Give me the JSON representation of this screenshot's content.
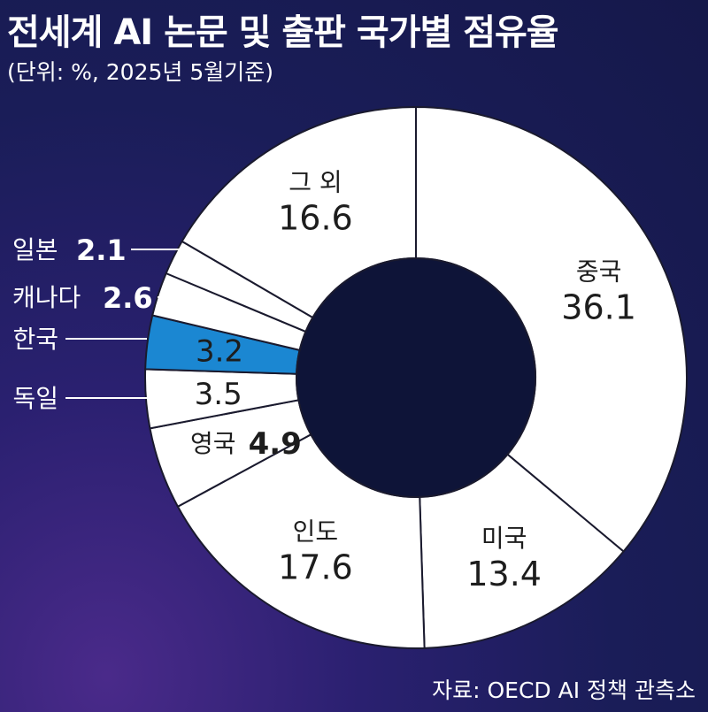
{
  "title": "전세계 AI 논문 및 출판 국가별 점유율",
  "subtitle": "(단위: %, 2025년 5월기준)",
  "source": "자료: OECD AI 정책 관측소",
  "colors": {
    "slice": "#ffffff",
    "highlight": "#1b87d2",
    "center": "#0e1438",
    "stroke": "#1a1a2e"
  },
  "chart_data": {
    "type": "pie",
    "title": "전세계 AI 논문 및 출판 국가별 점유율",
    "unit": "%",
    "donut": true,
    "highlight": "한국",
    "slices": [
      {
        "label": "중국",
        "value": 36.1
      },
      {
        "label": "미국",
        "value": 13.4
      },
      {
        "label": "인도",
        "value": 17.6
      },
      {
        "label": "영국",
        "value": 4.9
      },
      {
        "label": "독일",
        "value": 3.5
      },
      {
        "label": "한국",
        "value": 3.2
      },
      {
        "label": "캐나다",
        "value": 2.6
      },
      {
        "label": "일본",
        "value": 2.1
      },
      {
        "label": "그 외",
        "value": 16.6
      }
    ]
  }
}
